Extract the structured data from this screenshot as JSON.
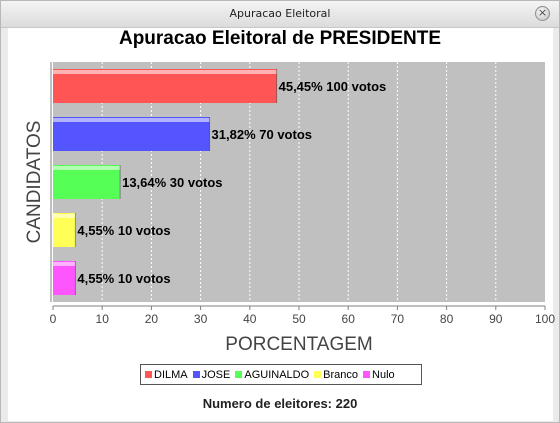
{
  "window": {
    "title": "Apuracao Eleitoral",
    "close_glyph": "×"
  },
  "footer": {
    "voters": "Numero de eleitores: 220"
  },
  "chart_data": {
    "type": "bar",
    "orientation": "horizontal",
    "title": "Apuracao Eleitoral de PRESIDENTE",
    "xlabel": "PORCENTAGEM",
    "ylabel": "CANDIDATOS",
    "xlim": [
      0,
      100
    ],
    "xticks": [
      0,
      10,
      20,
      30,
      40,
      50,
      60,
      70,
      80,
      90,
      100
    ],
    "grid": true,
    "legend_position": "bottom",
    "series": [
      {
        "name": "DILMA",
        "value": 45.45,
        "label": "45,45%  100 votos",
        "color": "#ff5555"
      },
      {
        "name": "JOSE",
        "value": 31.82,
        "label": "31,82%  70 votos",
        "color": "#5555ff"
      },
      {
        "name": "AGUINALDO",
        "value": 13.64,
        "label": "13,64%  30 votos",
        "color": "#55ff55"
      },
      {
        "name": "Branco",
        "value": 4.55,
        "label": "4,55%  10 votos",
        "color": "#ffff55"
      },
      {
        "name": "Nulo",
        "value": 4.55,
        "label": "4,55%  10 votos",
        "color": "#ff55ff"
      }
    ]
  }
}
